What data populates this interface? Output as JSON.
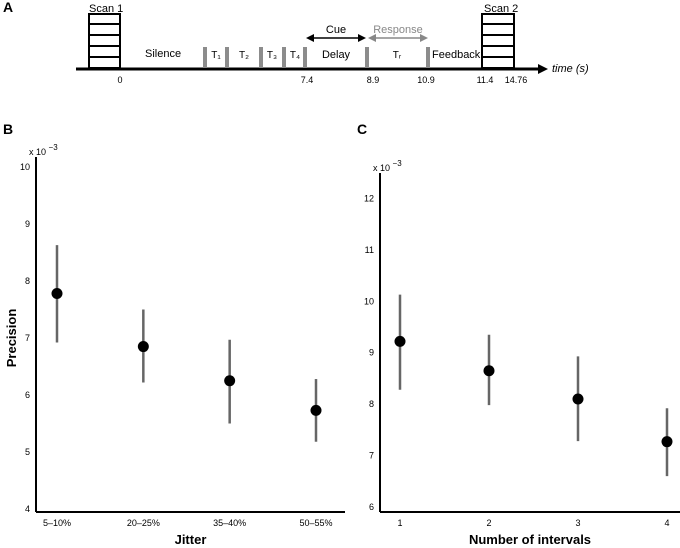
{
  "panel_a": {
    "label": "A",
    "scan1": "Scan 1",
    "scan2": "Scan 2",
    "silence": "Silence",
    "intervals": [
      "T₁",
      "T₂",
      "T₃",
      "T₄"
    ],
    "cue": "Cue",
    "response": "Response",
    "delay": "Delay",
    "tr": "Tᵣ",
    "feedback": "Feedback",
    "time_label": "time (s)",
    "ticks": [
      "0",
      "7.4",
      "8.9",
      "10.9",
      "11.4",
      "14.76"
    ],
    "colors": {
      "arrow_cue": "#000000",
      "arrow_response": "#888888",
      "marker": "#8c8c8c"
    }
  },
  "chart_data": [
    {
      "panel": "B",
      "type": "scatter",
      "categories": [
        "5–10%",
        "20–25%",
        "35–40%",
        "50–55%"
      ],
      "values": [
        7.78,
        6.85,
        6.25,
        5.73
      ],
      "error_low": [
        6.92,
        6.22,
        5.5,
        5.18
      ],
      "error_high": [
        8.63,
        7.5,
        6.97,
        6.28
      ],
      "ylim": [
        4,
        10
      ],
      "yticks": [
        "4",
        "5",
        "6",
        "7",
        "8",
        "9",
        "10"
      ],
      "scale_label": "x 10",
      "scale_exp": "−3",
      "xlabel": "Jitter",
      "ylabel": "Precision",
      "colors": {
        "point": "#000000",
        "errorbar": "#666666"
      }
    },
    {
      "panel": "C",
      "type": "scatter",
      "categories": [
        "1",
        "2",
        "3",
        "4"
      ],
      "values": [
        9.22,
        8.65,
        8.1,
        7.27
      ],
      "error_low": [
        8.28,
        7.98,
        7.28,
        6.6
      ],
      "error_high": [
        10.13,
        9.35,
        8.93,
        7.92
      ],
      "ylim": [
        6,
        12.3
      ],
      "yticks": [
        "6",
        "7",
        "8",
        "9",
        "10",
        "11",
        "12"
      ],
      "scale_label": "x 10",
      "scale_exp": "−3",
      "xlabel": "Number of intervals",
      "ylabel": "",
      "colors": {
        "point": "#000000",
        "errorbar": "#666666"
      }
    }
  ]
}
